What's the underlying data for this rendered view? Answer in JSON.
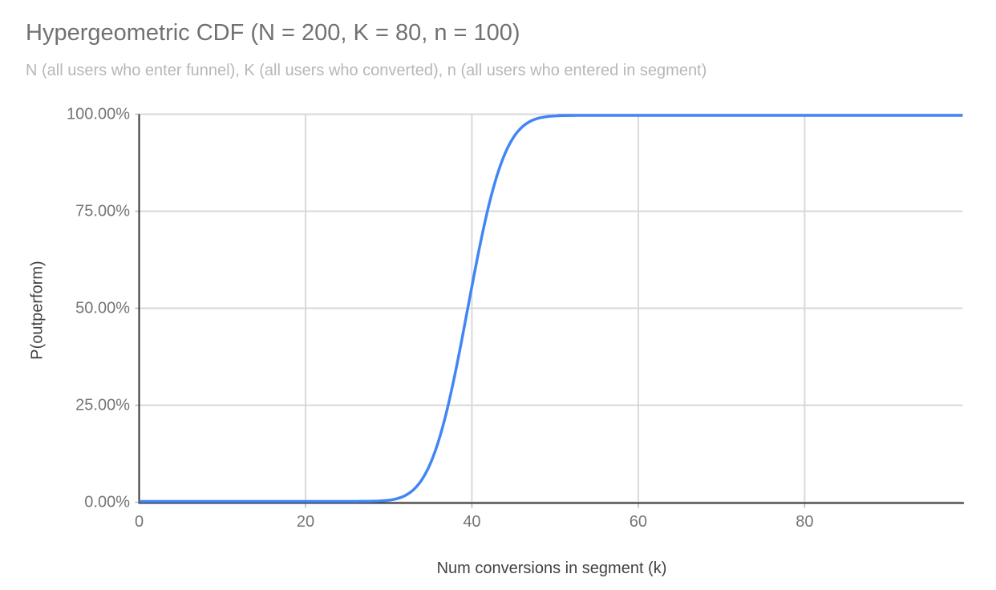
{
  "chart": {
    "title": "Hypergeometric CDF (N = 200, K = 80, n = 100)",
    "subtitle": "N (all users who enter funnel), K (all users who converted), n (all users who entered in segment)",
    "x_axis_title": "Num conversions in segment (k)",
    "y_axis_title": "P(outperform)"
  },
  "colors": {
    "background": "#ffffff",
    "line": "#4285f4",
    "grid": "#d9d9d9",
    "axis": "#333333",
    "tick_mark": "#b7b7b7",
    "title_text": "#717171",
    "subtitle_text": "#b7b7b7",
    "tick_text": "#757575",
    "axis_title_text": "#424242"
  },
  "chart_data": {
    "type": "line",
    "title": "Hypergeometric CDF (N = 200, K = 80, n = 100)",
    "subtitle": "N (all users who enter funnel), K (all users who converted), n (all users who entered in segment)",
    "xlabel": "Num conversions in segment (k)",
    "ylabel": "P(outperform)",
    "xlim": [
      0,
      99
    ],
    "ylim": [
      0,
      1
    ],
    "grid": true,
    "legend": "none",
    "x_ticks": [
      {
        "value": 0,
        "label": "0"
      },
      {
        "value": 20,
        "label": "20"
      },
      {
        "value": 40,
        "label": "40"
      },
      {
        "value": 60,
        "label": "60"
      },
      {
        "value": 80,
        "label": "80"
      }
    ],
    "y_ticks": [
      {
        "value": 0.0,
        "label": "0.00%"
      },
      {
        "value": 0.25,
        "label": "25.00%"
      },
      {
        "value": 0.5,
        "label": "50.00%"
      },
      {
        "value": 0.75,
        "label": "75.00%"
      },
      {
        "value": 1.0,
        "label": "100.00%"
      }
    ],
    "series": [
      {
        "name": "P(outperform)",
        "color": "#4285f4",
        "x": [
          0,
          24,
          25,
          26,
          27,
          28,
          29,
          30,
          31,
          32,
          33,
          34,
          35,
          36,
          37,
          38,
          39,
          40,
          41,
          42,
          43,
          44,
          45,
          46,
          47,
          48,
          49,
          50,
          51,
          52,
          53,
          54,
          99
        ],
        "y": [
          0.0,
          0.0,
          0.0,
          0.0001,
          0.0002,
          0.0005,
          0.0013,
          0.0031,
          0.0072,
          0.0154,
          0.0307,
          0.0567,
          0.0977,
          0.157,
          0.236,
          0.3332,
          0.4428,
          0.5572,
          0.6668,
          0.764,
          0.843,
          0.9023,
          0.9433,
          0.9693,
          0.9846,
          0.9928,
          0.9969,
          0.9987,
          0.9995,
          0.9998,
          0.9999,
          1.0,
          1.0
        ]
      }
    ]
  }
}
